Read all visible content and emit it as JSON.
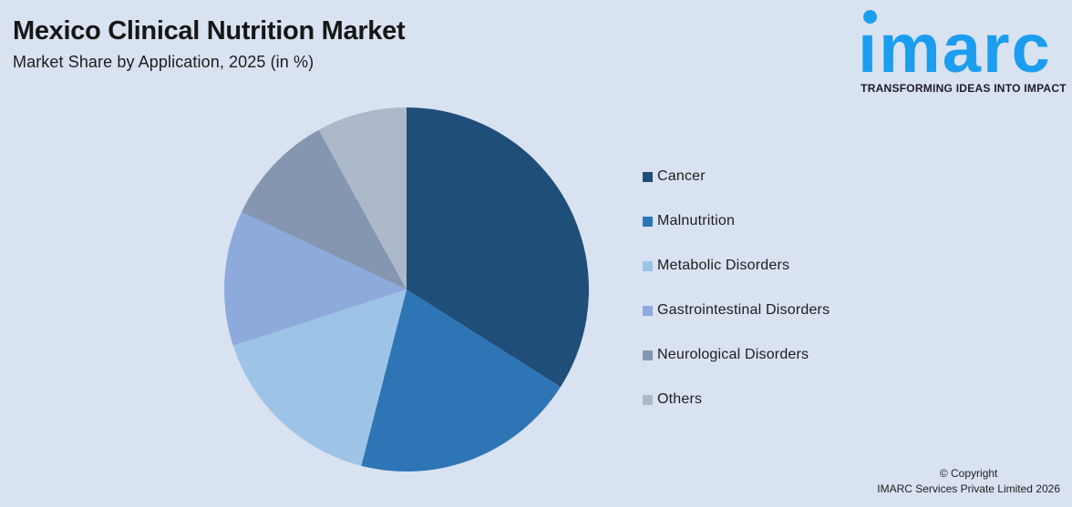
{
  "background_color": "#D9E2F1",
  "header": {
    "title": "Mexico Clinical Nutrition Market",
    "subtitle": "Market Share by Application, 2025 (in %)"
  },
  "logo": {
    "wordmark": "ımarc",
    "wordmark_display": "imarc",
    "tagline": "TRANSFORMING IDEAS INTO IMPACT",
    "brand_color": "#1B9DF0"
  },
  "chart_data": {
    "type": "pie",
    "title": "Mexico Clinical Nutrition Market",
    "subtitle": "Market Share by Application, 2025 (in %)",
    "unit": "%",
    "labels": [
      "Cancer",
      "Malnutrition",
      "Metabolic Disorders",
      "Gastrointestinal Disorders",
      "Neurological Disorders",
      "Others"
    ],
    "values": [
      34,
      20,
      16,
      12,
      10,
      8
    ],
    "colors": [
      "#1F4E79",
      "#2E75B6",
      "#9DC3E6",
      "#8EA9DB",
      "#8496B0",
      "#ADB9CA"
    ],
    "start_angle_deg": 0,
    "direction": "clockwise",
    "legend_position": "right",
    "data_labels_shown": false
  },
  "footer": {
    "copyright_line1": "© Copyright",
    "copyright_line2": "IMARC Services Private Limited 2026"
  }
}
